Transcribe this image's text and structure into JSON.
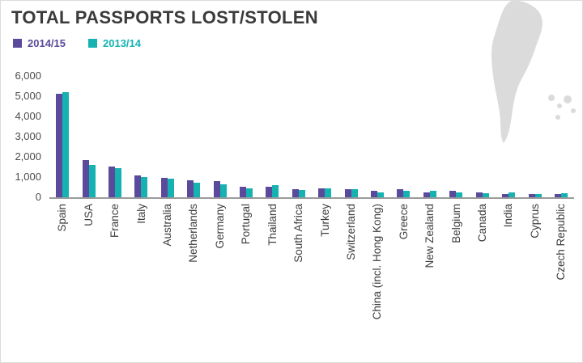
{
  "chart_data": {
    "type": "bar",
    "title": "TOTAL PASSPORTS LOST/STOLEN",
    "categories": [
      "Spain",
      "USA",
      "France",
      "Italy",
      "Australia",
      "Netherlands",
      "Germany",
      "Portugal",
      "Thailand",
      "South Africa",
      "Turkey",
      "Switzerland",
      "China (incl. Hong Kong)",
      "Greece",
      "New Zealand",
      "Belgium",
      "Canada",
      "India",
      "Cyprus",
      "Czech Republic"
    ],
    "series": [
      {
        "name": "2014/15",
        "color": "#5b4a9b",
        "values": [
          5100,
          1850,
          1500,
          1100,
          950,
          850,
          800,
          500,
          500,
          400,
          450,
          400,
          300,
          400,
          250,
          300,
          250,
          150,
          150,
          150
        ]
      },
      {
        "name": "2013/14",
        "color": "#16b2b2",
        "values": [
          5200,
          1600,
          1450,
          1000,
          900,
          700,
          650,
          450,
          600,
          350,
          450,
          380,
          250,
          300,
          300,
          250,
          200,
          250,
          150,
          200
        ]
      }
    ],
    "xlabel": "",
    "ylabel": "",
    "ylim": [
      0,
      6000
    ],
    "ytick_labels": [
      "6,000",
      "5,000",
      "4,000",
      "3,000",
      "2,000",
      "1,000",
      "0"
    ],
    "grid": false,
    "legend_position": "top-left"
  }
}
